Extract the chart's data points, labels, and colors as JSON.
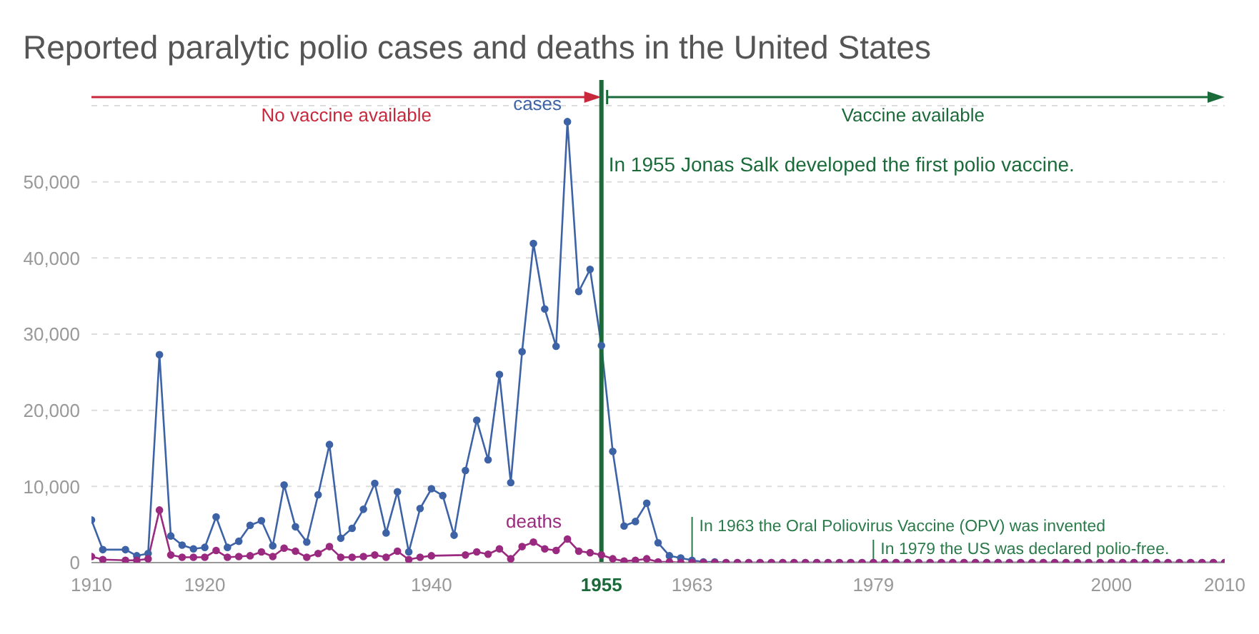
{
  "chart_data": {
    "type": "line",
    "title": "Reported paralytic polio cases and deaths in the United States",
    "xlim": [
      1910,
      2010
    ],
    "xticks": [
      1910,
      1920,
      1940,
      1955,
      1963,
      1979,
      2000,
      2010
    ],
    "ylim": [
      0,
      60000
    ],
    "yticks": [
      0,
      {
        "value": 10000,
        "label": "10,000"
      },
      {
        "value": 20000,
        "label": "20,000"
      },
      {
        "value": 30000,
        "label": "30,000"
      },
      {
        "value": 40000,
        "label": "40,000"
      },
      {
        "value": 50000,
        "label": "50,000"
      }
    ],
    "grid": "y",
    "marker": "circle",
    "line_style": "solid",
    "legend": false,
    "series": [
      {
        "name": "cases",
        "color": "#3d63a6",
        "x": [
          1910,
          1911,
          1913,
          1914,
          1915,
          1916,
          1917,
          1918,
          1919,
          1920,
          1921,
          1922,
          1923,
          1924,
          1925,
          1926,
          1927,
          1928,
          1929,
          1930,
          1931,
          1932,
          1933,
          1934,
          1935,
          1936,
          1937,
          1938,
          1939,
          1940,
          1941,
          1942,
          1943,
          1944,
          1945,
          1946,
          1947,
          1948,
          1949,
          1950,
          1951,
          1952,
          1953,
          1954,
          1955,
          1956,
          1957,
          1958,
          1959,
          1960,
          1961,
          1962,
          1963,
          1964,
          1965,
          1966,
          1967,
          1968,
          1969,
          1970,
          1971,
          1972,
          1973,
          1974,
          1975,
          1976,
          1977,
          1978,
          1979,
          1980,
          1981,
          1982,
          1983,
          1984,
          1985,
          1986,
          1987,
          1988,
          1989,
          1990,
          1991,
          1992,
          1993,
          1994,
          1995,
          1996,
          1997,
          1998,
          1999,
          2000,
          2001,
          2002,
          2003,
          2004,
          2005,
          2006,
          2007,
          2008,
          2009,
          2010
        ],
        "values": [
          5600,
          1700,
          1700,
          900,
          1200,
          27300,
          3500,
          2300,
          1800,
          2000,
          6000,
          2000,
          2800,
          4900,
          5500,
          2200,
          10200,
          4700,
          2700,
          8900,
          15500,
          3200,
          4500,
          7000,
          10400,
          3900,
          9300,
          1400,
          7100,
          9700,
          8800,
          3600,
          12100,
          18700,
          13500,
          24700,
          10500,
          27700,
          41900,
          33300,
          28400,
          57900,
          35600,
          38500,
          28500,
          14600,
          4800,
          5400,
          7800,
          2600,
          900,
          600,
          300,
          100,
          100,
          0,
          0,
          0,
          0,
          0,
          0,
          0,
          0,
          0,
          0,
          0,
          0,
          0,
          0,
          0,
          0,
          0,
          0,
          0,
          0,
          0,
          0,
          0,
          0,
          0,
          0,
          0,
          0,
          0,
          0,
          0,
          0,
          0,
          0,
          0,
          0,
          0,
          0,
          0,
          0,
          0,
          0,
          0,
          0,
          0
        ]
      },
      {
        "name": "deaths",
        "color": "#9a2a80",
        "x": [
          1910,
          1911,
          1913,
          1914,
          1915,
          1916,
          1917,
          1918,
          1919,
          1920,
          1921,
          1922,
          1923,
          1924,
          1925,
          1926,
          1927,
          1928,
          1929,
          1930,
          1931,
          1932,
          1933,
          1934,
          1935,
          1936,
          1937,
          1938,
          1939,
          1940,
          1943,
          1944,
          1945,
          1946,
          1947,
          1948,
          1949,
          1950,
          1951,
          1952,
          1953,
          1954,
          1955,
          1956,
          1957,
          1958,
          1959,
          1960,
          1961,
          1962,
          1963,
          1964,
          1965,
          1966,
          1967,
          1968,
          1969,
          1970,
          1971,
          1972,
          1973,
          1974,
          1975,
          1976,
          1977,
          1978,
          1979,
          1980,
          1981,
          1982,
          1983,
          1984,
          1985,
          1986,
          1987,
          1988,
          1989,
          1990,
          1991,
          1992,
          1993,
          1994,
          1995,
          1996,
          1997,
          1998,
          1999,
          2000,
          2001,
          2002,
          2003,
          2004,
          2005,
          2006,
          2007,
          2008,
          2009,
          2010
        ],
        "values": [
          800,
          400,
          300,
          300,
          500,
          6900,
          1000,
          700,
          700,
          700,
          1600,
          700,
          800,
          900,
          1400,
          800,
          1900,
          1500,
          700,
          1200,
          2100,
          700,
          700,
          800,
          1000,
          700,
          1500,
          400,
          700,
          900,
          1000,
          1400,
          1100,
          1800,
          500,
          2100,
          2700,
          1800,
          1600,
          3100,
          1500,
          1300,
          1000,
          500,
          200,
          300,
          500,
          100,
          100,
          0,
          0,
          0,
          0,
          0,
          0,
          0,
          0,
          0,
          0,
          0,
          0,
          0,
          0,
          0,
          0,
          0,
          0,
          0,
          0,
          0,
          0,
          0,
          0,
          0,
          0,
          0,
          0,
          0,
          0,
          0,
          0,
          0,
          0,
          0,
          0,
          0,
          0,
          0,
          0,
          0,
          0,
          0,
          0,
          0,
          0,
          0,
          0,
          0
        ]
      }
    ],
    "ref_lines": [
      {
        "axis": "x",
        "value": 1955,
        "label": "In 1955 Jonas Salk developed the first polio vaccine.",
        "color": "#1b6b3a"
      },
      {
        "axis": "x",
        "value": 1963,
        "label": "In 1963 the Oral Poliovirus Vaccine (OPV) was invented",
        "color": "#2a7a4a"
      },
      {
        "axis": "x",
        "value": 1979,
        "label": "In 1979 the US was declared polio-free.",
        "color": "#2a7a4a"
      }
    ],
    "annotations": [
      "No vaccine available",
      "Vaccine available"
    ]
  }
}
